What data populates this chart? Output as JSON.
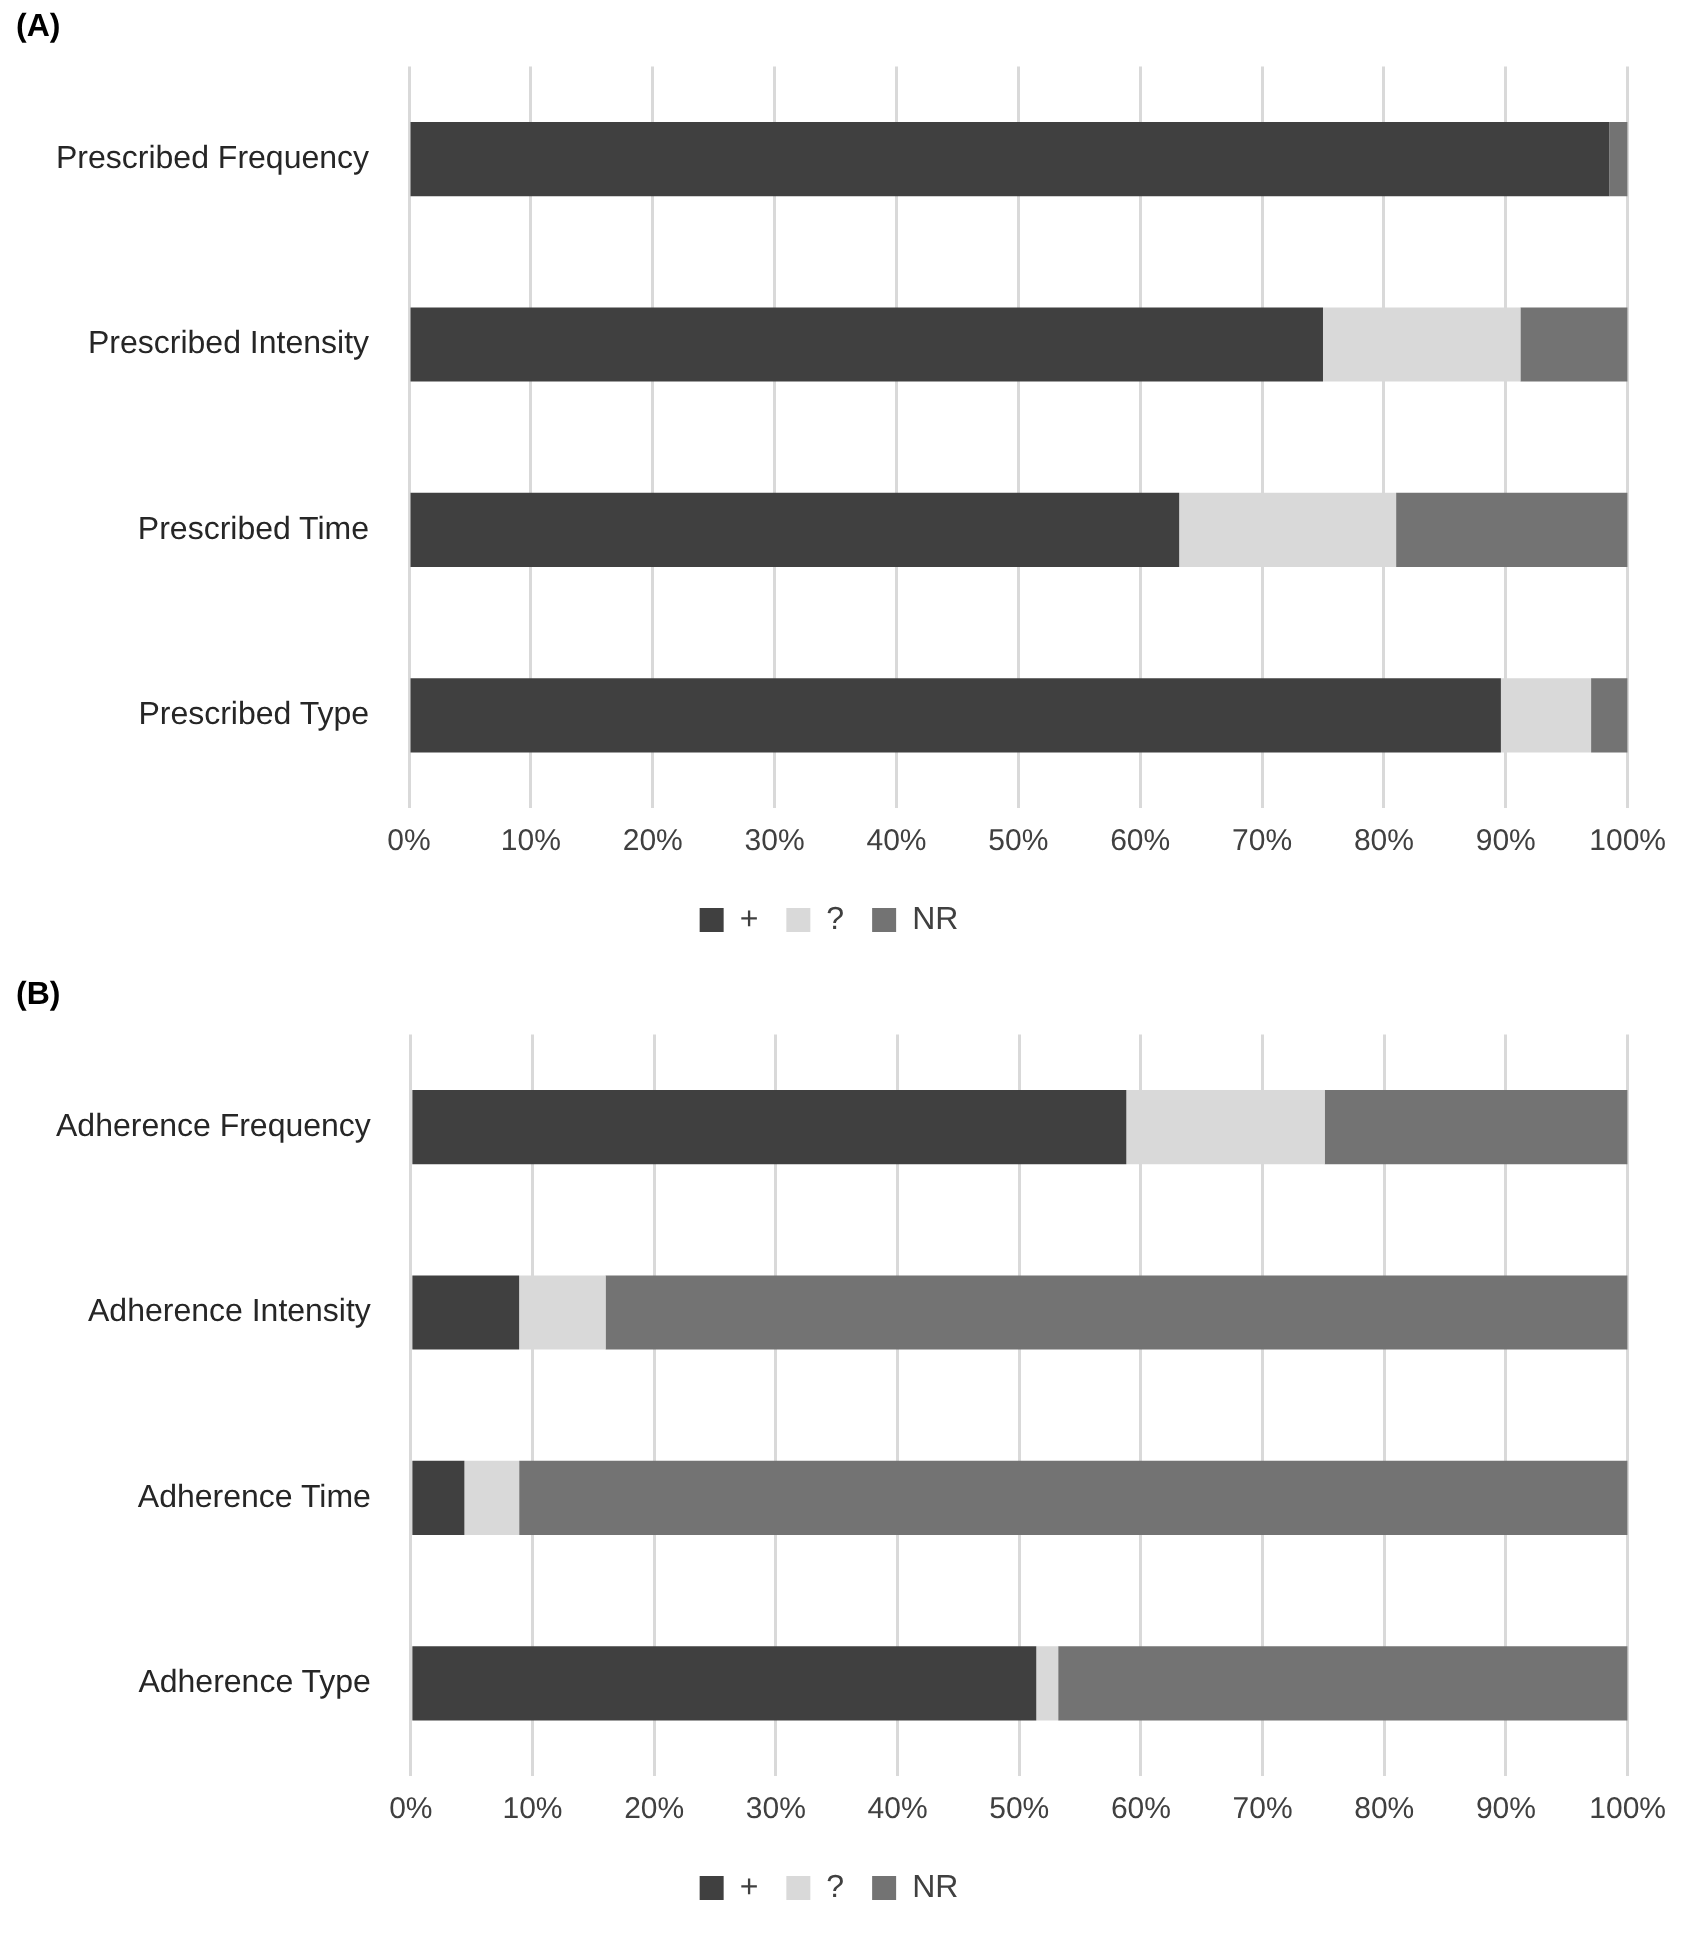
{
  "chart_data": [
    {
      "type": "bar",
      "title": "(A)",
      "orientation": "horizontal",
      "stacked": true,
      "categories": [
        "Prescribed Frequency",
        "Prescribed Intensity",
        "Prescribed Time",
        "Prescribed Type"
      ],
      "series": [
        {
          "name": "+",
          "color": "#404040",
          "values": [
            98.5,
            75.0,
            63.2,
            89.6
          ]
        },
        {
          "name": "?",
          "color": "#d9d9d9",
          "values": [
            0,
            16.2,
            17.8,
            7.4
          ]
        },
        {
          "name": "NR",
          "color": "#737373",
          "values": [
            1.5,
            8.8,
            19.0,
            3.0
          ]
        }
      ],
      "xlim": [
        0,
        100
      ],
      "xticks": [
        {
          "value": 0,
          "label": "0%"
        },
        {
          "value": 10,
          "label": "10%"
        },
        {
          "value": 20,
          "label": "20%"
        },
        {
          "value": 30,
          "label": "30%"
        },
        {
          "value": 40,
          "label": "40%"
        },
        {
          "value": 50,
          "label": "50%"
        },
        {
          "value": 60,
          "label": "60%"
        },
        {
          "value": 70,
          "label": "70%"
        },
        {
          "value": 80,
          "label": "80%"
        },
        {
          "value": 90,
          "label": "90%"
        },
        {
          "value": 100,
          "label": "100%"
        }
      ],
      "grid": "x",
      "legend": "bottom"
    },
    {
      "type": "bar",
      "title": "(B)",
      "orientation": "horizontal",
      "stacked": true,
      "categories": [
        "Adherence Frequency",
        "Adherence Intensity",
        "Adherence Time",
        "Adherence Type"
      ],
      "series": [
        {
          "name": "+",
          "color": "#404040",
          "values": [
            58.8,
            8.9,
            4.4,
            51.4
          ]
        },
        {
          "name": "?",
          "color": "#d9d9d9",
          "values": [
            16.3,
            7.1,
            4.5,
            1.8
          ]
        },
        {
          "name": "NR",
          "color": "#737373",
          "values": [
            24.9,
            84.0,
            91.1,
            46.8
          ]
        }
      ],
      "xlim": [
        0,
        100
      ],
      "xticks": [
        {
          "value": 0,
          "label": "0%"
        },
        {
          "value": 10,
          "label": "10%"
        },
        {
          "value": 20,
          "label": "20%"
        },
        {
          "value": 30,
          "label": "30%"
        },
        {
          "value": 40,
          "label": "40%"
        },
        {
          "value": 50,
          "label": "50%"
        },
        {
          "value": 60,
          "label": "60%"
        },
        {
          "value": 70,
          "label": "70%"
        },
        {
          "value": 80,
          "label": "80%"
        },
        {
          "value": 90,
          "label": "90%"
        },
        {
          "value": 100,
          "label": "100%"
        }
      ],
      "grid": "x",
      "legend": "bottom"
    }
  ]
}
